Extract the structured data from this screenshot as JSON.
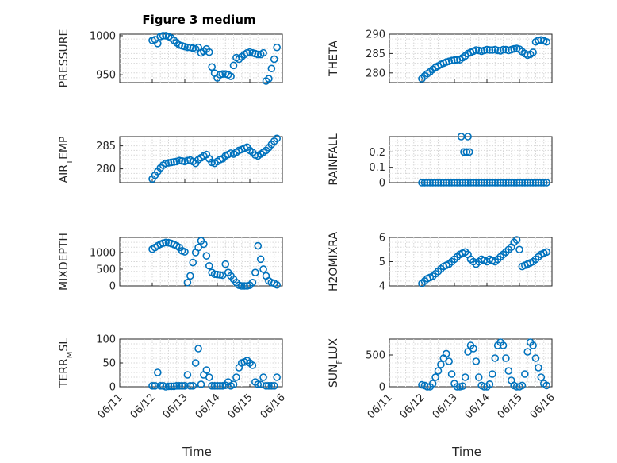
{
  "figure": {
    "title": "Figure 3 medium"
  },
  "chart_data": [
    {
      "type": "scatter",
      "ylabel": "PRESSURE",
      "ylim": [
        940,
        1002
      ],
      "yticks": [
        950,
        1000
      ],
      "ytick_labels": [
        "950",
        "1000"
      ],
      "x": [
        "06/12 00:00",
        "06/12 02:00",
        "06/12 04:00",
        "06/12 06:00",
        "06/12 08:00",
        "06/12 10:00",
        "06/12 12:00",
        "06/12 14:00",
        "06/12 16:00",
        "06/12 18:00",
        "06/12 20:00",
        "06/12 22:00",
        "06/13 00:00",
        "06/13 02:00",
        "06/13 04:00",
        "06/13 06:00",
        "06/13 08:00",
        "06/13 10:00",
        "06/13 12:00",
        "06/13 14:00",
        "06/13 16:00",
        "06/13 18:00",
        "06/13 20:00",
        "06/13 22:00",
        "06/14 00:00",
        "06/14 02:00",
        "06/14 04:00",
        "06/14 06:00",
        "06/14 08:00",
        "06/14 10:00",
        "06/14 12:00",
        "06/14 14:00",
        "06/14 16:00",
        "06/14 18:00",
        "06/14 20:00",
        "06/14 22:00",
        "06/15 00:00",
        "06/15 02:00",
        "06/15 04:00",
        "06/15 06:00",
        "06/15 08:00",
        "06/15 10:00",
        "06/15 12:00",
        "06/15 14:00",
        "06/15 16:00",
        "06/15 18:00",
        "06/15 20:00"
      ],
      "y": [
        994,
        995,
        990,
        999,
        1000,
        1000,
        999,
        997,
        994,
        991,
        988,
        987,
        986,
        985,
        985,
        984,
        983,
        985,
        978,
        980,
        983,
        979,
        960,
        952,
        946,
        950,
        951,
        951,
        950,
        948,
        962,
        972,
        970,
        973,
        976,
        978,
        979,
        978,
        977,
        976,
        976,
        978,
        942,
        945,
        958,
        970,
        985
      ]
    },
    {
      "type": "scatter",
      "ylabel": "THETA",
      "ylim": [
        277.5,
        290
      ],
      "yticks": [
        280,
        285,
        290
      ],
      "ytick_labels": [
        "280",
        "285",
        "290"
      ],
      "x": [
        "06/12 00:00",
        "06/12 02:00",
        "06/12 04:00",
        "06/12 06:00",
        "06/12 08:00",
        "06/12 10:00",
        "06/12 12:00",
        "06/12 14:00",
        "06/12 16:00",
        "06/12 18:00",
        "06/12 20:00",
        "06/12 22:00",
        "06/13 00:00",
        "06/13 02:00",
        "06/13 04:00",
        "06/13 06:00",
        "06/13 08:00",
        "06/13 10:00",
        "06/13 12:00",
        "06/13 14:00",
        "06/13 16:00",
        "06/13 18:00",
        "06/13 20:00",
        "06/13 22:00",
        "06/14 00:00",
        "06/14 02:00",
        "06/14 04:00",
        "06/14 06:00",
        "06/14 08:00",
        "06/14 10:00",
        "06/14 12:00",
        "06/14 14:00",
        "06/14 16:00",
        "06/14 18:00",
        "06/14 20:00",
        "06/14 22:00",
        "06/15 00:00",
        "06/15 02:00",
        "06/15 04:00",
        "06/15 06:00",
        "06/15 08:00",
        "06/15 10:00",
        "06/15 12:00",
        "06/15 14:00",
        "06/15 16:00",
        "06/15 18:00",
        "06/15 20:00"
      ],
      "y": [
        278.5,
        279.2,
        279.8,
        280.3,
        280.9,
        281.4,
        281.8,
        282.2,
        282.5,
        282.8,
        283.0,
        283.2,
        283.3,
        283.4,
        283.4,
        283.9,
        284.4,
        285.0,
        285.3,
        285.6,
        285.9,
        285.8,
        285.6,
        285.8,
        286.0,
        285.9,
        285.9,
        286.0,
        285.8,
        285.7,
        286.0,
        286.0,
        285.8,
        286.0,
        286.2,
        286.3,
        286.1,
        285.5,
        285.0,
        284.6,
        284.8,
        285.3,
        288.0,
        288.4,
        288.5,
        288.3,
        288.0
      ]
    },
    {
      "type": "scatter",
      "ylabel": "AIR_TEMP",
      "ylim": [
        277,
        287
      ],
      "yticks": [
        280,
        285
      ],
      "ytick_labels": [
        "280",
        "285"
      ],
      "x": [
        "06/12 00:00",
        "06/12 02:00",
        "06/12 04:00",
        "06/12 06:00",
        "06/12 08:00",
        "06/12 10:00",
        "06/12 12:00",
        "06/12 14:00",
        "06/12 16:00",
        "06/12 18:00",
        "06/12 20:00",
        "06/12 22:00",
        "06/13 00:00",
        "06/13 02:00",
        "06/13 04:00",
        "06/13 06:00",
        "06/13 08:00",
        "06/13 10:00",
        "06/13 12:00",
        "06/13 14:00",
        "06/13 16:00",
        "06/13 18:00",
        "06/13 20:00",
        "06/13 22:00",
        "06/14 00:00",
        "06/14 02:00",
        "06/14 04:00",
        "06/14 06:00",
        "06/14 08:00",
        "06/14 10:00",
        "06/14 12:00",
        "06/14 14:00",
        "06/14 16:00",
        "06/14 18:00",
        "06/14 20:00",
        "06/14 22:00",
        "06/15 00:00",
        "06/15 02:00",
        "06/15 04:00",
        "06/15 06:00",
        "06/15 08:00",
        "06/15 10:00",
        "06/15 12:00",
        "06/15 14:00",
        "06/15 16:00",
        "06/15 18:00",
        "06/15 20:00"
      ],
      "y": [
        277.8,
        278.6,
        279.4,
        280.2,
        280.8,
        281.2,
        281.3,
        281.4,
        281.5,
        281.6,
        281.8,
        281.7,
        281.6,
        281.8,
        281.9,
        281.6,
        281.2,
        282.0,
        282.4,
        282.8,
        283.1,
        282.2,
        281.4,
        281.2,
        281.6,
        282.0,
        282.2,
        282.8,
        283.1,
        283.4,
        283.2,
        283.6,
        284.0,
        284.2,
        284.5,
        284.7,
        284.0,
        283.6,
        283.0,
        282.8,
        283.2,
        283.6,
        284.0,
        284.6,
        285.3,
        286.0,
        286.6
      ]
    },
    {
      "type": "scatter",
      "ylabel": "RAINFALL",
      "ylim": [
        0,
        0.3
      ],
      "yticks": [
        0,
        0.1,
        0.2
      ],
      "ytick_labels": [
        "0",
        "0.1",
        "0.2"
      ],
      "x": [
        "06/12 00:00",
        "06/12 02:00",
        "06/12 04:00",
        "06/12 06:00",
        "06/12 08:00",
        "06/12 10:00",
        "06/12 12:00",
        "06/12 14:00",
        "06/12 16:00",
        "06/12 18:00",
        "06/12 20:00",
        "06/12 22:00",
        "06/13 00:00",
        "06/13 02:00",
        "06/13 04:00",
        "06/13 06:00",
        "06/13 08:00",
        "06/13 10:00",
        "06/13 12:00",
        "06/13 14:00",
        "06/13 16:00",
        "06/13 18:00",
        "06/13 20:00",
        "06/13 22:00",
        "06/14 00:00",
        "06/14 02:00",
        "06/14 04:00",
        "06/14 06:00",
        "06/14 08:00",
        "06/14 10:00",
        "06/14 12:00",
        "06/14 14:00",
        "06/14 16:00",
        "06/14 18:00",
        "06/14 20:00",
        "06/14 22:00",
        "06/15 00:00",
        "06/15 02:00",
        "06/15 04:00",
        "06/15 06:00",
        "06/15 08:00",
        "06/15 10:00",
        "06/15 12:00",
        "06/15 14:00",
        "06/15 16:00",
        "06/15 18:00",
        "06/15 20:00",
        "06/13 05:00",
        "06/13 07:00",
        "06/13 09:00",
        "06/13 10:00",
        "06/13 11:00"
      ],
      "y": [
        0,
        0,
        0,
        0,
        0,
        0,
        0,
        0,
        0,
        0,
        0,
        0,
        0,
        0,
        0,
        0,
        0,
        0,
        0,
        0,
        0,
        0,
        0,
        0,
        0,
        0,
        0,
        0,
        0,
        0,
        0,
        0,
        0,
        0,
        0,
        0,
        0,
        0,
        0,
        0,
        0,
        0,
        0,
        0,
        0,
        0,
        0,
        0.3,
        0.2,
        0.2,
        0.3,
        0.2
      ]
    },
    {
      "type": "scatter",
      "ylabel": "MIXDEPTH",
      "ylim": [
        0,
        1450
      ],
      "yticks": [
        0,
        500,
        1000
      ],
      "ytick_labels": [
        "0",
        "500",
        "1000"
      ],
      "x": [
        "06/12 00:00",
        "06/12 02:00",
        "06/12 04:00",
        "06/12 06:00",
        "06/12 08:00",
        "06/12 10:00",
        "06/12 12:00",
        "06/12 14:00",
        "06/12 16:00",
        "06/12 18:00",
        "06/12 20:00",
        "06/12 22:00",
        "06/13 00:00",
        "06/13 02:00",
        "06/13 04:00",
        "06/13 06:00",
        "06/13 08:00",
        "06/13 10:00",
        "06/13 12:00",
        "06/13 14:00",
        "06/13 16:00",
        "06/13 18:00",
        "06/13 20:00",
        "06/13 22:00",
        "06/14 00:00",
        "06/14 02:00",
        "06/14 04:00",
        "06/14 06:00",
        "06/14 08:00",
        "06/14 10:00",
        "06/14 12:00",
        "06/14 14:00",
        "06/14 16:00",
        "06/14 18:00",
        "06/14 20:00",
        "06/14 22:00",
        "06/15 00:00",
        "06/15 02:00",
        "06/15 04:00",
        "06/15 06:00",
        "06/15 08:00",
        "06/15 10:00",
        "06/15 12:00",
        "06/15 14:00",
        "06/15 16:00",
        "06/15 18:00",
        "06/15 20:00"
      ],
      "y": [
        1100,
        1150,
        1200,
        1250,
        1280,
        1300,
        1290,
        1270,
        1240,
        1200,
        1150,
        1050,
        1020,
        100,
        300,
        700,
        1000,
        1150,
        1350,
        1250,
        900,
        600,
        400,
        350,
        340,
        330,
        320,
        650,
        400,
        300,
        200,
        100,
        20,
        0,
        0,
        0,
        20,
        100,
        400,
        1200,
        800,
        500,
        300,
        150,
        100,
        80,
        30
      ]
    },
    {
      "type": "scatter",
      "ylabel": "H2OMIXRA",
      "ylim": [
        4,
        6
      ],
      "yticks": [
        4,
        5,
        6
      ],
      "ytick_labels": [
        "4",
        "5",
        "6"
      ],
      "x": [
        "06/12 00:00",
        "06/12 02:00",
        "06/12 04:00",
        "06/12 06:00",
        "06/12 08:00",
        "06/12 10:00",
        "06/12 12:00",
        "06/12 14:00",
        "06/12 16:00",
        "06/12 18:00",
        "06/12 20:00",
        "06/12 22:00",
        "06/13 00:00",
        "06/13 02:00",
        "06/13 04:00",
        "06/13 06:00",
        "06/13 08:00",
        "06/13 10:00",
        "06/13 12:00",
        "06/13 14:00",
        "06/13 16:00",
        "06/13 18:00",
        "06/13 20:00",
        "06/13 22:00",
        "06/14 00:00",
        "06/14 02:00",
        "06/14 04:00",
        "06/14 06:00",
        "06/14 08:00",
        "06/14 10:00",
        "06/14 12:00",
        "06/14 14:00",
        "06/14 16:00",
        "06/14 18:00",
        "06/14 20:00",
        "06/14 22:00",
        "06/15 00:00",
        "06/15 02:00",
        "06/15 04:00",
        "06/15 06:00",
        "06/15 08:00",
        "06/15 10:00",
        "06/15 12:00",
        "06/15 14:00",
        "06/15 16:00",
        "06/15 18:00",
        "06/15 20:00"
      ],
      "y": [
        4.1,
        4.2,
        4.3,
        4.35,
        4.4,
        4.5,
        4.6,
        4.7,
        4.8,
        4.85,
        4.9,
        5.0,
        5.1,
        5.2,
        5.3,
        5.35,
        5.4,
        5.3,
        5.1,
        5.0,
        4.9,
        5.0,
        5.1,
        5.05,
        5.0,
        5.1,
        5.05,
        5.0,
        5.1,
        5.2,
        5.3,
        5.4,
        5.5,
        5.6,
        5.8,
        5.9,
        5.5,
        4.8,
        4.85,
        4.9,
        4.95,
        5.0,
        5.1,
        5.2,
        5.3,
        5.35,
        5.4
      ]
    },
    {
      "type": "scatter",
      "ylabel": "TERR_MSL",
      "ylim": [
        0,
        100
      ],
      "yticks": [
        0,
        50,
        100
      ],
      "ytick_labels": [
        "0",
        "50",
        "100"
      ],
      "x": [
        "06/12 00:00",
        "06/12 02:00",
        "06/12 04:00",
        "06/12 06:00",
        "06/12 08:00",
        "06/12 10:00",
        "06/12 12:00",
        "06/12 14:00",
        "06/12 16:00",
        "06/12 18:00",
        "06/12 20:00",
        "06/12 22:00",
        "06/13 00:00",
        "06/13 02:00",
        "06/13 04:00",
        "06/13 06:00",
        "06/13 08:00",
        "06/13 10:00",
        "06/13 12:00",
        "06/13 14:00",
        "06/13 16:00",
        "06/13 18:00",
        "06/13 20:00",
        "06/13 22:00",
        "06/14 00:00",
        "06/14 02:00",
        "06/14 04:00",
        "06/14 06:00",
        "06/14 08:00",
        "06/14 10:00",
        "06/14 12:00",
        "06/14 14:00",
        "06/14 16:00",
        "06/14 18:00",
        "06/14 20:00",
        "06/14 22:00",
        "06/15 00:00",
        "06/15 02:00",
        "06/15 04:00",
        "06/15 06:00",
        "06/15 08:00",
        "06/15 10:00",
        "06/15 12:00",
        "06/15 14:00",
        "06/15 16:00",
        "06/15 18:00",
        "06/15 20:00"
      ],
      "y": [
        2,
        2,
        30,
        2,
        2,
        0,
        1,
        1,
        1,
        2,
        2,
        2,
        2,
        25,
        2,
        2,
        50,
        80,
        5,
        25,
        35,
        20,
        2,
        2,
        2,
        2,
        2,
        3,
        10,
        2,
        5,
        20,
        40,
        50,
        52,
        55,
        50,
        45,
        10,
        5,
        5,
        20,
        2,
        2,
        2,
        2,
        20
      ]
    },
    {
      "type": "scatter",
      "ylabel": "SUN_FLUX",
      "ylim": [
        0,
        750
      ],
      "yticks": [
        0,
        500
      ],
      "ytick_labels": [
        "0",
        "500"
      ],
      "x": [
        "06/12 00:00",
        "06/12 02:00",
        "06/12 04:00",
        "06/12 06:00",
        "06/12 08:00",
        "06/12 10:00",
        "06/12 12:00",
        "06/12 14:00",
        "06/12 16:00",
        "06/12 18:00",
        "06/12 20:00",
        "06/12 22:00",
        "06/13 00:00",
        "06/13 02:00",
        "06/13 04:00",
        "06/13 06:00",
        "06/13 08:00",
        "06/13 10:00",
        "06/13 12:00",
        "06/13 14:00",
        "06/13 16:00",
        "06/13 18:00",
        "06/13 20:00",
        "06/13 22:00",
        "06/14 00:00",
        "06/14 02:00",
        "06/14 04:00",
        "06/14 06:00",
        "06/14 08:00",
        "06/14 10:00",
        "06/14 12:00",
        "06/14 14:00",
        "06/14 16:00",
        "06/14 18:00",
        "06/14 20:00",
        "06/14 22:00",
        "06/15 00:00",
        "06/15 02:00",
        "06/15 04:00",
        "06/15 06:00",
        "06/15 08:00",
        "06/15 10:00",
        "06/15 12:00",
        "06/15 14:00",
        "06/15 16:00",
        "06/15 18:00",
        "06/15 20:00"
      ],
      "y": [
        30,
        20,
        0,
        0,
        50,
        150,
        250,
        350,
        450,
        520,
        400,
        200,
        50,
        0,
        0,
        10,
        150,
        550,
        650,
        600,
        400,
        150,
        20,
        0,
        0,
        40,
        200,
        450,
        650,
        700,
        650,
        450,
        250,
        100,
        20,
        0,
        0,
        20,
        200,
        550,
        700,
        650,
        450,
        300,
        150,
        50,
        20
      ]
    }
  ],
  "xaxis": {
    "label": "Time",
    "xlim": [
      "06/11",
      "06/16"
    ],
    "tick_labels": [
      "06/11",
      "06/12",
      "06/13",
      "06/14",
      "06/15",
      "06/16"
    ]
  }
}
